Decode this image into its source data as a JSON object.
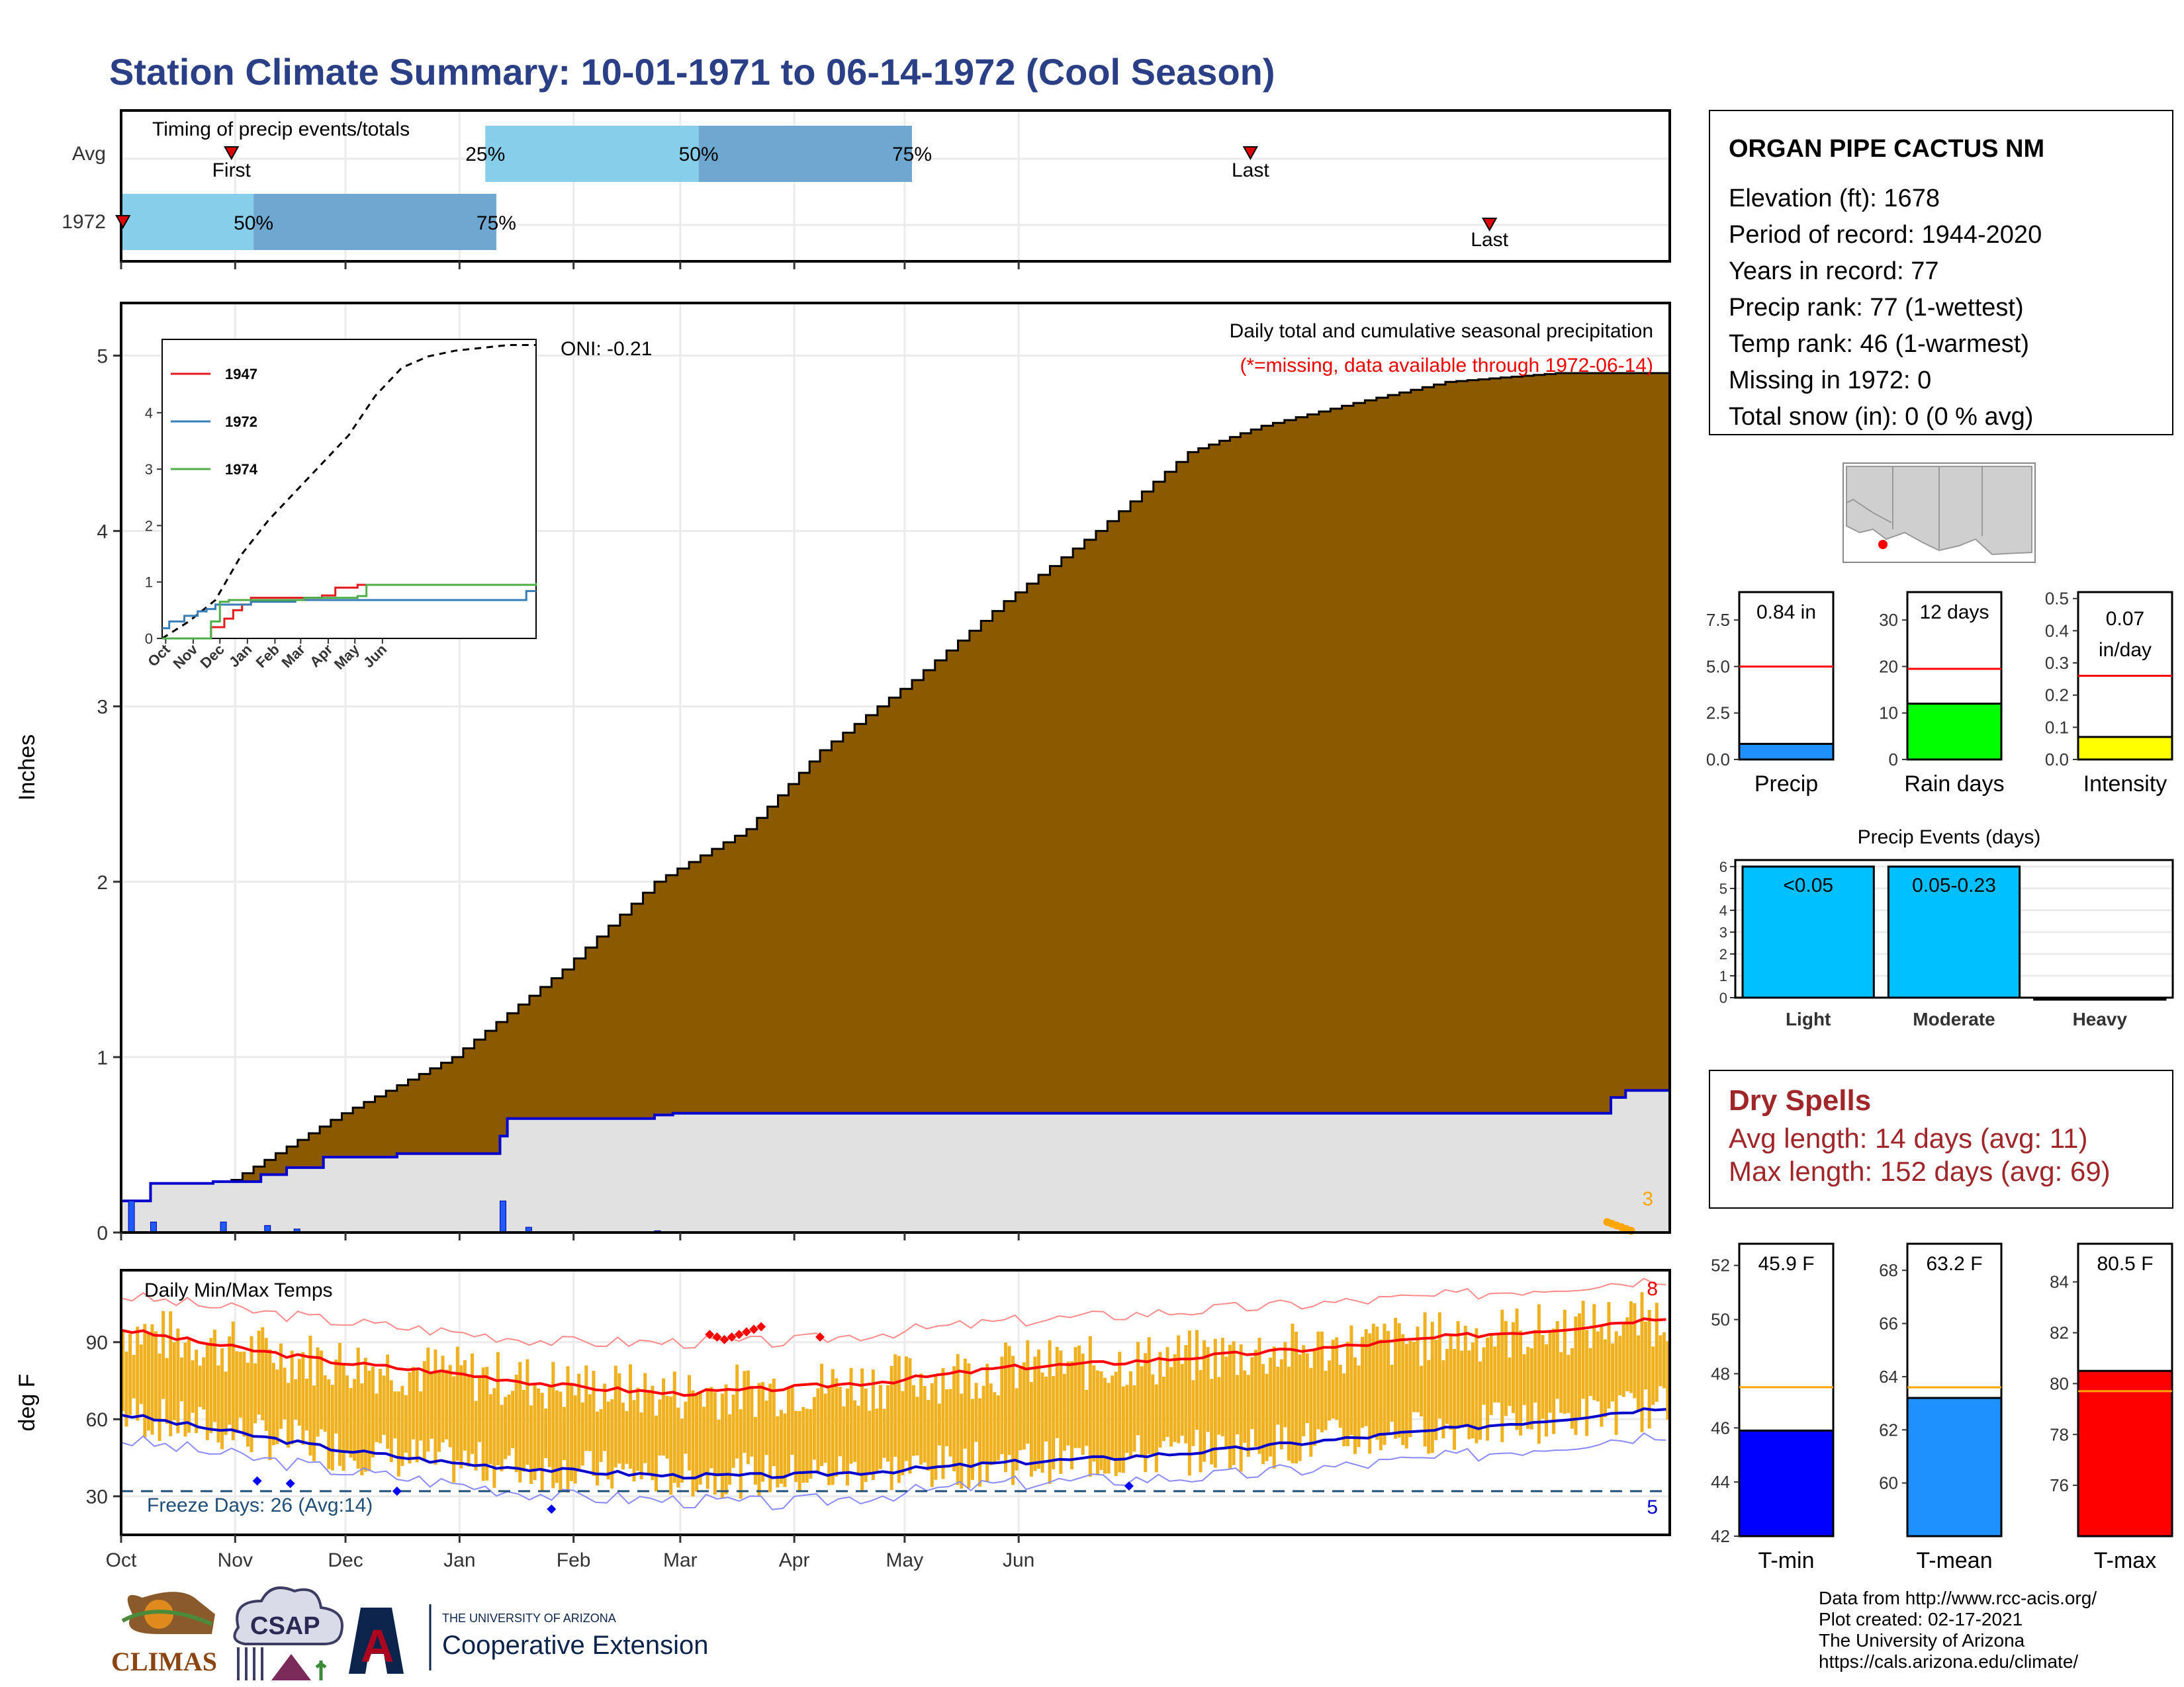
{
  "title": "Station Climate Summary: 10-01-1971 to 06-14-1972 (Cool Season)",
  "timing": {
    "title": "Timing of precip events/totals",
    "rows": [
      "Avg",
      "1972"
    ],
    "first_label": "First",
    "last_label": "Last",
    "pct_25": "25%",
    "pct_50": "50%",
    "pct_75": "75%",
    "avg_bars_days": {
      "first": 30,
      "p25": 99,
      "p50": 157,
      "p75": 215,
      "last": 307
    },
    "y1972_bars_days": {
      "first": 0,
      "p25": 0,
      "p50": 36,
      "p75": 102,
      "last": 372
    },
    "colors": {
      "light": "#87ceeb",
      "dark": "#6ea7cf",
      "marker": "#dd0000"
    }
  },
  "precip": {
    "ylabel": "Inches",
    "oni": "ONI: -0.21",
    "caption": "Daily total and cumulative seasonal precipitation",
    "missing_note": "(*=missing, data available through 1972-06-14)",
    "missing_count": "3",
    "yticks": [
      "0",
      "1",
      "2",
      "3",
      "4",
      "5"
    ],
    "ylim": [
      0,
      5.3
    ],
    "colors": {
      "avg_fill": "#8b5a00",
      "obs_fill": "#e1e1e1",
      "obs_line": "#0000cc",
      "missing": "#ffa500"
    }
  },
  "inset": {
    "legend": [
      "1947",
      "1972",
      "1974"
    ],
    "legend_colors": [
      "#e41a1c",
      "#377eb8",
      "#4daf4a"
    ],
    "yticks": [
      "0",
      "1",
      "2",
      "3",
      "4"
    ],
    "months": [
      "Oct",
      "Nov",
      "Dec",
      "Jan",
      "Feb",
      "Mar",
      "Apr",
      "May",
      "Jun"
    ]
  },
  "temps": {
    "title": "Daily Min/Max Temps",
    "ylabel": "deg F",
    "yticks": [
      "30",
      "60",
      "90"
    ],
    "freeze_note": "Freeze Days: 26 (Avg:14)",
    "record_high_count": "8",
    "record_low_count": "5",
    "colors": {
      "range_bar": "#efb120",
      "avg_max": "#ff0000",
      "avg_min": "#0000cc",
      "freeze": "#1f4e79"
    }
  },
  "months": [
    "Oct",
    "Nov",
    "Dec",
    "Jan",
    "Feb",
    "Mar",
    "Apr",
    "May",
    "Jun"
  ],
  "station": {
    "name": "ORGAN PIPE CACTUS NM",
    "lines": [
      "Elevation (ft): 1678",
      "Period of record: 1944-2020",
      "Years in record: 77",
      "Precip rank: 77 (1-wettest)",
      "Temp rank: 46 (1-warmest)",
      "Missing in 1972: 0",
      "Total snow (in): 0 (0 % avg)"
    ]
  },
  "mini_precip": {
    "value_label": "0.84 in",
    "xlabel": "Precip",
    "yticks": [
      "0.0",
      "2.5",
      "5.0",
      "7.5"
    ]
  },
  "mini_raindays": {
    "value_label": "12 days",
    "xlabel": "Rain days",
    "yticks": [
      "0",
      "10",
      "20",
      "30"
    ]
  },
  "mini_intensity": {
    "value_line1": "0.07",
    "value_line2": "in/day",
    "xlabel": "Intensity",
    "yticks": [
      "0.0",
      "0.1",
      "0.2",
      "0.3",
      "0.4",
      "0.5"
    ]
  },
  "events": {
    "title": "Precip Events (days)",
    "categories": [
      "Light",
      "Moderate",
      "Heavy"
    ],
    "bar_labels": [
      "<0.05",
      "0.05-0.23",
      ""
    ],
    "yticks": [
      "0",
      "1",
      "2",
      "3",
      "4",
      "5",
      "6"
    ]
  },
  "dry_spells": {
    "title": "Dry Spells",
    "avg": "Avg length: 14 days (avg: 11)",
    "max": "Max length: 152 days (avg: 69)"
  },
  "mini_tmin": {
    "value_label": "45.9 F",
    "xlabel": "T-min",
    "yticks": [
      "42",
      "44",
      "46",
      "48",
      "50",
      "52"
    ]
  },
  "mini_tmean": {
    "value_label": "63.2 F",
    "xlabel": "T-mean",
    "yticks": [
      "60",
      "62",
      "64",
      "66",
      "68"
    ]
  },
  "mini_tmax": {
    "value_label": "80.5 F",
    "xlabel": "T-max",
    "yticks": [
      "76",
      "78",
      "80",
      "82",
      "84"
    ]
  },
  "footer": {
    "lines": [
      "Data from http://www.rcc-acis.org/",
      "Plot created: 02-17-2021",
      "The University of Arizona",
      "https://cals.arizona.edu/climate/"
    ],
    "logo_climas": "CLIMAS",
    "logo_csap": "CSAP",
    "logo_ua_small": "THE UNIVERSITY OF ARIZONA",
    "logo_ua_big": "Cooperative Extension",
    "logo_ua_letter": "A"
  },
  "chart_data": {
    "type": "area",
    "x_unit": "day of season (0 = Oct 1)",
    "cumulative_avg_precip": [
      [
        0,
        0
      ],
      [
        30,
        0.3
      ],
      [
        60,
        0.68
      ],
      [
        90,
        1.0
      ],
      [
        120,
        1.5
      ],
      [
        145,
        2.0
      ],
      [
        170,
        2.3
      ],
      [
        190,
        2.75
      ],
      [
        215,
        3.15
      ],
      [
        240,
        3.6
      ],
      [
        265,
        4.0
      ],
      [
        290,
        4.45
      ],
      [
        310,
        4.6
      ],
      [
        335,
        4.73
      ],
      [
        360,
        4.85
      ],
      [
        390,
        4.9
      ],
      [
        421,
        4.9
      ]
    ],
    "cumulative_1972_precip": [
      [
        0,
        0.18
      ],
      [
        8,
        0.28
      ],
      [
        25,
        0.29
      ],
      [
        38,
        0.33
      ],
      [
        45,
        0.37
      ],
      [
        55,
        0.43
      ],
      [
        75,
        0.45
      ],
      [
        100,
        0.45
      ],
      [
        103,
        0.55
      ],
      [
        105,
        0.65
      ],
      [
        145,
        0.67
      ],
      [
        150,
        0.68
      ],
      [
        200,
        0.68
      ],
      [
        300,
        0.68
      ],
      [
        400,
        0.68
      ],
      [
        405,
        0.77
      ],
      [
        409,
        0.81
      ],
      [
        421,
        0.84
      ]
    ],
    "inset_avg_cumulative": [
      [
        0,
        0.0
      ],
      [
        30,
        0.3
      ],
      [
        60,
        0.68
      ],
      [
        90,
        1.5
      ],
      [
        120,
        2.1
      ],
      [
        150,
        2.6
      ],
      [
        180,
        3.1
      ],
      [
        210,
        3.6
      ],
      [
        240,
        4.3
      ],
      [
        270,
        4.8
      ],
      [
        300,
        5.0
      ],
      [
        330,
        5.1
      ],
      [
        360,
        5.15
      ],
      [
        390,
        5.2
      ],
      [
        421,
        5.2
      ]
    ],
    "inset_1947": [
      [
        0,
        0
      ],
      [
        45,
        0
      ],
      [
        55,
        0.2
      ],
      [
        70,
        0.35
      ],
      [
        80,
        0.5
      ],
      [
        90,
        0.6
      ],
      [
        100,
        0.72
      ],
      [
        150,
        0.72
      ],
      [
        180,
        0.76
      ],
      [
        195,
        0.9
      ],
      [
        220,
        0.95
      ],
      [
        421,
        0.95
      ]
    ],
    "inset_1972": [
      [
        0,
        0.18
      ],
      [
        8,
        0.3
      ],
      [
        25,
        0.4
      ],
      [
        40,
        0.48
      ],
      [
        50,
        0.52
      ],
      [
        60,
        0.6
      ],
      [
        100,
        0.65
      ],
      [
        150,
        0.68
      ],
      [
        400,
        0.68
      ],
      [
        410,
        0.84
      ],
      [
        421,
        0.84
      ]
    ],
    "inset_1974": [
      [
        0,
        0.0
      ],
      [
        50,
        0.0
      ],
      [
        55,
        0.3
      ],
      [
        65,
        0.65
      ],
      [
        75,
        0.68
      ],
      [
        160,
        0.72
      ],
      [
        220,
        0.75
      ],
      [
        230,
        0.95
      ],
      [
        421,
        0.98
      ]
    ],
    "temps_avg_max": [
      [
        0,
        95
      ],
      [
        30,
        88
      ],
      [
        60,
        82
      ],
      [
        90,
        78
      ],
      [
        120,
        73
      ],
      [
        150,
        70
      ],
      [
        180,
        72
      ],
      [
        210,
        75
      ],
      [
        240,
        80
      ],
      [
        270,
        82
      ],
      [
        300,
        85
      ],
      [
        330,
        88
      ],
      [
        360,
        92
      ],
      [
        390,
        95
      ],
      [
        421,
        100
      ]
    ],
    "temps_avg_min": [
      [
        0,
        62
      ],
      [
        30,
        55
      ],
      [
        60,
        48
      ],
      [
        90,
        43
      ],
      [
        120,
        40
      ],
      [
        150,
        38
      ],
      [
        180,
        38
      ],
      [
        210,
        40
      ],
      [
        240,
        43
      ],
      [
        270,
        45
      ],
      [
        300,
        48
      ],
      [
        330,
        52
      ],
      [
        360,
        56
      ],
      [
        390,
        60
      ],
      [
        421,
        65
      ]
    ],
    "temps_record_high": [
      [
        0,
        108
      ],
      [
        60,
        98
      ],
      [
        120,
        90
      ],
      [
        180,
        90
      ],
      [
        240,
        98
      ],
      [
        300,
        103
      ],
      [
        360,
        108
      ],
      [
        421,
        115
      ]
    ],
    "temps_record_low": [
      [
        0,
        52
      ],
      [
        60,
        40
      ],
      [
        120,
        30
      ],
      [
        180,
        27
      ],
      [
        240,
        35
      ],
      [
        300,
        38
      ],
      [
        360,
        45
      ],
      [
        421,
        55
      ]
    ],
    "freeze_line": 32,
    "temps_ylim": [
      15,
      118
    ],
    "mini_bars": {
      "precip": {
        "value": 0.84,
        "avg": 5.0,
        "ylim": [
          0,
          9
        ]
      },
      "raindays": {
        "value": 12,
        "avg": 19.5,
        "ylim": [
          0,
          36
        ]
      },
      "intensity": {
        "value": 0.07,
        "avg": 0.26,
        "ylim": [
          0,
          0.52
        ]
      },
      "events": {
        "values": [
          6,
          6,
          0
        ],
        "ylim": [
          0,
          6.3
        ]
      },
      "tmin": {
        "value": 45.9,
        "avg": 47.5,
        "ylim": [
          42,
          52.8
        ]
      },
      "tmean": {
        "value": 63.2,
        "avg": 63.6,
        "ylim": [
          58,
          69
        ]
      },
      "tmax": {
        "value": 80.5,
        "avg": 79.7,
        "ylim": [
          74,
          85.5
        ]
      }
    }
  }
}
